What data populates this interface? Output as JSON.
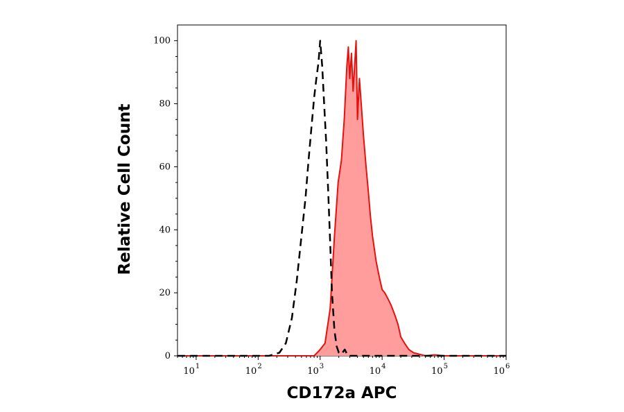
{
  "chart_data": {
    "type": "area",
    "xlabel": "CD172a APC",
    "ylabel": "Relative Cell Count",
    "xscale": "log",
    "xlim": [
      5,
      1000000
    ],
    "ylim": [
      0,
      105
    ],
    "x_ticks": [
      {
        "base": "10",
        "exp": "1",
        "value": 10
      },
      {
        "base": "10",
        "exp": "2",
        "value": 100
      },
      {
        "base": "10",
        "exp": "3",
        "value": 1000
      },
      {
        "base": "10",
        "exp": "4",
        "value": 10000
      },
      {
        "base": "10",
        "exp": "5",
        "value": 100000
      },
      {
        "base": "10",
        "exp": "6",
        "value": 1000000
      }
    ],
    "y_ticks": [
      "0",
      "20",
      "40",
      "60",
      "80",
      "100"
    ],
    "grid": false,
    "legend": "none",
    "series": [
      {
        "style": "dashed-black-line",
        "color": "#000000",
        "x": [
          5,
          150,
          220,
          280,
          350,
          420,
          500,
          580,
          650,
          720,
          800,
          870,
          940,
          1000,
          1080,
          1160,
          1250,
          1350,
          1450,
          1550,
          1700,
          1850,
          2000,
          2200,
          2500,
          2800,
          3200,
          1000000
        ],
        "y": [
          0,
          0,
          1,
          4,
          12,
          24,
          38,
          50,
          62,
          72,
          82,
          88,
          93,
          100,
          92,
          80,
          68,
          52,
          36,
          20,
          8,
          3,
          1,
          0.5,
          2,
          0,
          0,
          0
        ]
      },
      {
        "style": "red-filled-histogram",
        "color": "#e8100c",
        "fill": "#ff9c9c",
        "x": [
          5,
          300,
          800,
          1000,
          1200,
          1450,
          1700,
          1950,
          2200,
          2450,
          2700,
          2850,
          3000,
          3200,
          3400,
          3600,
          3800,
          4000,
          4300,
          4600,
          5000,
          5500,
          6000,
          6500,
          7000,
          8000,
          9000,
          10000,
          11000,
          12500,
          14000,
          16000,
          18000,
          20000,
          23000,
          27000,
          32000,
          40000,
          50000,
          70000,
          100000,
          1000000
        ],
        "y": [
          0,
          0,
          0,
          2,
          4,
          15,
          38,
          55,
          62,
          75,
          92,
          98,
          88,
          96,
          84,
          92,
          100,
          75,
          88,
          80,
          70,
          60,
          52,
          44,
          38,
          30,
          25,
          21,
          20,
          18,
          16,
          13,
          10,
          6,
          4,
          2,
          1,
          0.5,
          0,
          0.3,
          0,
          0
        ]
      }
    ]
  }
}
